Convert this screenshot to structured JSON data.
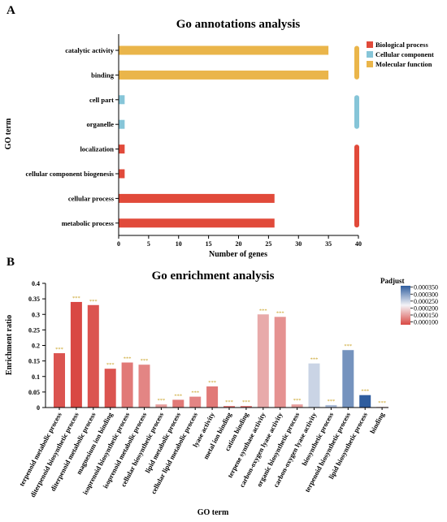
{
  "panel_a": {
    "letter": "A"
  },
  "panel_b": {
    "letter": "B"
  },
  "colors": {
    "Biological process": "#e14a3a",
    "Cellular component": "#86c5d8",
    "Molecular function": "#eab54a"
  },
  "chart_data": [
    {
      "type": "bar",
      "orientation": "horizontal",
      "title": "Go annotations analysis",
      "xlabel": "Number of genes",
      "ylabel": "GO term",
      "xlim": [
        0,
        40
      ],
      "xticks": [
        0,
        5,
        10,
        15,
        20,
        25,
        30,
        35,
        40
      ],
      "categories": [
        "catalytic activity",
        "binding",
        "cell part",
        "organelle",
        "localization",
        "cellular component biogenesis",
        "cellular process",
        "metabolic process"
      ],
      "values": [
        35,
        35,
        1,
        1,
        1,
        1,
        26,
        26
      ],
      "groups": [
        "Molecular function",
        "Molecular function",
        "Cellular component",
        "Cellular component",
        "Biological process",
        "Biological process",
        "Biological process",
        "Biological process"
      ],
      "legend": {
        "position": "top-right",
        "entries": [
          "Biological process",
          "Cellular component",
          "Molecular function"
        ]
      }
    },
    {
      "type": "bar",
      "title": "Go enrichment analysis",
      "xlabel": "GO term",
      "ylabel": "Enrichment ratio",
      "ylim": [
        0,
        0.4
      ],
      "yticks": [
        "0",
        "0.05",
        "0.1",
        "0.15",
        "0.2",
        "0.25",
        "0.3",
        "0.35",
        "0.4"
      ],
      "categories": [
        "terpenoid metabolic process",
        "diterpenoid biosynthetic process",
        "diterpenoid metabolic process",
        "magnesium ion binding",
        "isoprenoid biosynthetic process",
        "isoprenoid metabolic process",
        "cellular biosynthetic process",
        "lipid metabolic process",
        "cellular lipid metabolic process",
        "lyase activity",
        "metal ion binding",
        "cation binding",
        "terpene synthase activity",
        "carbon-oxygen lyase activity",
        "organic biosynthetic process",
        "carbon-oxygen lyase activity",
        "biosynthetic process",
        "terpenoid biosynthetic process",
        "lipid biosynthetic process",
        "binding"
      ],
      "values": [
        0.175,
        0.34,
        0.33,
        0.125,
        0.145,
        0.138,
        0.01,
        0.025,
        0.035,
        0.068,
        0.005,
        0.005,
        0.3,
        0.292,
        0.01,
        0.142,
        0.008,
        0.185,
        0.04,
        0.002
      ],
      "padjust": [
        9e-05,
        8e-05,
        9e-05,
        9e-05,
        0.00012,
        0.00013,
        0.00015,
        0.00012,
        0.00013,
        0.00012,
        0.00012,
        0.00012,
        0.00016,
        0.00014,
        0.00015,
        0.00025,
        0.00027,
        0.00031,
        0.00036,
        0.00017
      ],
      "significance": [
        "***",
        "***",
        "***",
        "***",
        "***",
        "***",
        "***",
        "***",
        "***",
        "***",
        "***",
        "***",
        "***",
        "***",
        "***",
        "***",
        "***",
        "***",
        "***",
        "***"
      ],
      "colorbar": {
        "title": "Padjust",
        "position": "top-right",
        "ticks": [
          "0.000350",
          "0.000300",
          "0.000250",
          "0.000200",
          "0.000150",
          "0.000100"
        ],
        "min": 8e-05,
        "max": 0.00036,
        "low_color": "#d94843",
        "mid_color": "#f4f4f8",
        "high_color": "#2f5d9e"
      }
    }
  ]
}
